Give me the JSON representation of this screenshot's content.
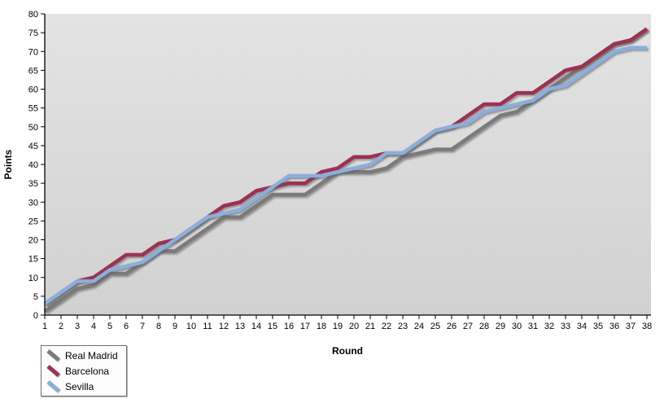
{
  "chart_data": {
    "type": "line",
    "title": "",
    "xlabel": "Round",
    "ylabel": "Points",
    "x": [
      1,
      2,
      3,
      4,
      5,
      6,
      7,
      8,
      9,
      10,
      11,
      12,
      13,
      14,
      15,
      16,
      17,
      18,
      19,
      20,
      21,
      22,
      23,
      24,
      25,
      26,
      27,
      28,
      29,
      30,
      31,
      32,
      33,
      34,
      35,
      36,
      37,
      38
    ],
    "y_ticks": [
      0,
      5,
      10,
      15,
      20,
      25,
      30,
      35,
      40,
      45,
      50,
      55,
      60,
      65,
      70,
      75,
      80
    ],
    "ylim": [
      0,
      80
    ],
    "xlim": [
      1,
      38
    ],
    "grid": false,
    "legend_position": "bottom-left",
    "plot_bg_top": "#e3e3e3",
    "plot_bg_bottom": "#d1d1d1",
    "axis_color": "#000000",
    "series": [
      {
        "name": "Real Madrid",
        "color": "#7b7b7b",
        "values": [
          1,
          4,
          7,
          8,
          11,
          11,
          14,
          17,
          17,
          20,
          23,
          26,
          26,
          29,
          32,
          32,
          32,
          35,
          38,
          38,
          38,
          39,
          42,
          43,
          44,
          44,
          47,
          50,
          53,
          54,
          57,
          60,
          63,
          66,
          69,
          72,
          73,
          76
        ]
      },
      {
        "name": "Barcelona",
        "color": "#9d3154",
        "values": [
          3,
          6,
          9,
          10,
          13,
          16,
          16,
          19,
          20,
          23,
          26,
          29,
          30,
          33,
          34,
          35,
          35,
          38,
          39,
          42,
          42,
          43,
          43,
          46,
          49,
          50,
          53,
          56,
          56,
          59,
          59,
          62,
          65,
          66,
          69,
          72,
          73,
          76
        ]
      },
      {
        "name": "Sevilla",
        "color": "#8aafdc",
        "values": [
          3,
          6,
          9,
          9,
          12,
          13,
          14,
          17,
          20,
          23,
          26,
          27,
          28,
          31,
          34,
          37,
          37,
          37,
          38,
          39,
          40,
          43,
          43,
          46,
          49,
          50,
          51,
          54,
          55,
          56,
          57,
          60,
          61,
          64,
          67,
          70,
          71,
          71
        ]
      }
    ]
  }
}
